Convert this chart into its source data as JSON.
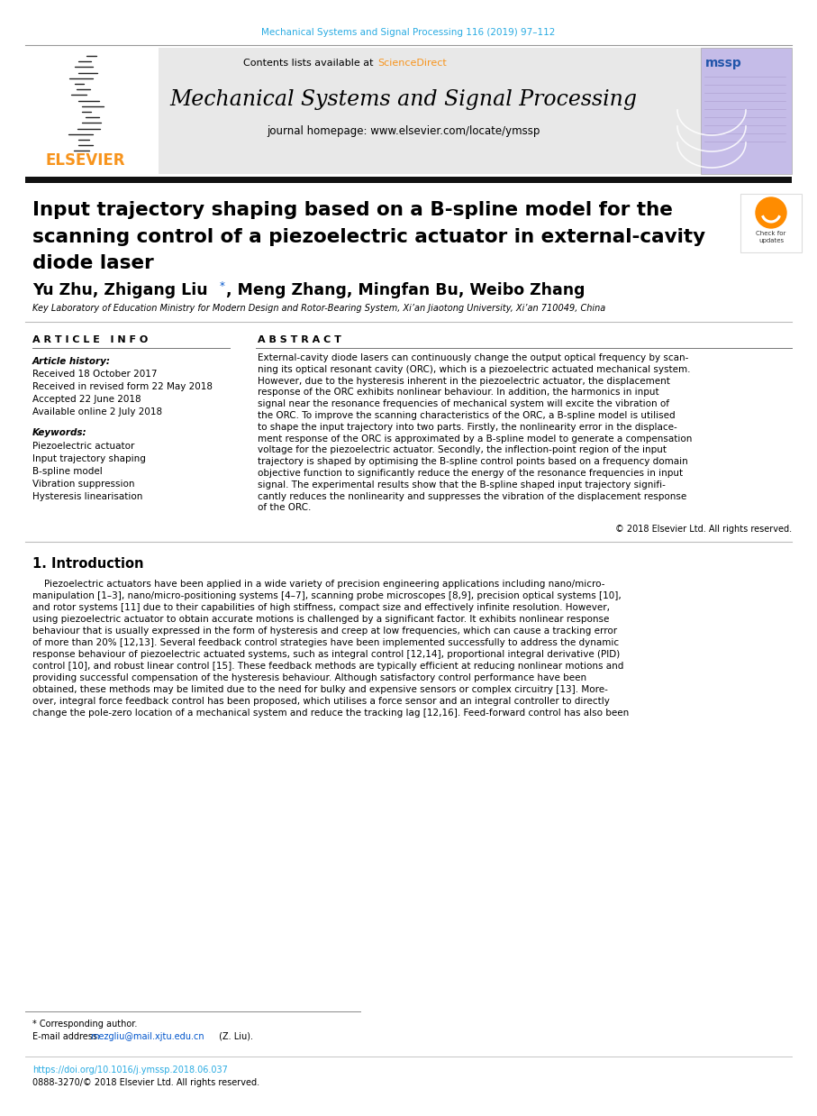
{
  "journal_ref": "Mechanical Systems and Signal Processing 116 (2019) 97–112",
  "journal_ref_color": "#29ABE2",
  "contents_text": "Contents lists available at ",
  "science_direct": "ScienceDirect",
  "science_direct_color": "#F7941D",
  "journal_name": "Mechanical Systems and Signal Processing",
  "journal_homepage": "journal homepage: www.elsevier.com/locate/ymssp",
  "elsevier_color": "#F7941D",
  "elsevier_text": "ELSEVIER",
  "header_bg": "#E8E8E8",
  "paper_title_line1": "Input trajectory shaping based on a B-spline model for the",
  "paper_title_line2": "scanning control of a piezoelectric actuator in external-cavity",
  "paper_title_line3": "diode laser",
  "authors": "Yu Zhu, Zhigang Liu",
  "authors_star": "*",
  "authors_rest": ", Meng Zhang, Mingfan Bu, Weibo Zhang",
  "affiliation": "Key Laboratory of Education Ministry for Modern Design and Rotor-Bearing System, Xi’an Jiaotong University, Xi’an 710049, China",
  "article_info_title": "A R T I C L E   I N F O",
  "abstract_title": "A B S T R A C T",
  "article_history_label": "Article history:",
  "received1": "Received 18 October 2017",
  "received2": "Received in revised form 22 May 2018",
  "accepted": "Accepted 22 June 2018",
  "available": "Available online 2 July 2018",
  "keywords_label": "Keywords:",
  "keyword1": "Piezoelectric actuator",
  "keyword2": "Input trajectory shaping",
  "keyword3": "B-spline model",
  "keyword4": "Vibration suppression",
  "keyword5": "Hysteresis linearisation",
  "abstract_lines": [
    "External-cavity diode lasers can continuously change the output optical frequency by scan-",
    "ning its optical resonant cavity (ORC), which is a piezoelectric actuated mechanical system.",
    "However, due to the hysteresis inherent in the piezoelectric actuator, the displacement",
    "response of the ORC exhibits nonlinear behaviour. In addition, the harmonics in input",
    "signal near the resonance frequencies of mechanical system will excite the vibration of",
    "the ORC. To improve the scanning characteristics of the ORC, a B-spline model is utilised",
    "to shape the input trajectory into two parts. Firstly, the nonlinearity error in the displace-",
    "ment response of the ORC is approximated by a B-spline model to generate a compensation",
    "voltage for the piezoelectric actuator. Secondly, the inflection-point region of the input",
    "trajectory is shaped by optimising the B-spline control points based on a frequency domain",
    "objective function to significantly reduce the energy of the resonance frequencies in input",
    "signal. The experimental results show that the B-spline shaped input trajectory signifi-",
    "cantly reduces the nonlinearity and suppresses the vibration of the displacement response",
    "of the ORC."
  ],
  "copyright_text": "© 2018 Elsevier Ltd. All rights reserved.",
  "section_title": "1. Introduction",
  "intro_lines": [
    "    Piezoelectric actuators have been applied in a wide variety of precision engineering applications including nano/micro-",
    "manipulation [1–3], nano/micro-positioning systems [4–7], scanning probe microscopes [8,9], precision optical systems [10],",
    "and rotor systems [11] due to their capabilities of high stiffness, compact size and effectively infinite resolution. However,",
    "using piezoelectric actuator to obtain accurate motions is challenged by a significant factor. It exhibits nonlinear response",
    "behaviour that is usually expressed in the form of hysteresis and creep at low frequencies, which can cause a tracking error",
    "of more than 20% [12,13]. Several feedback control strategies have been implemented successfully to address the dynamic",
    "response behaviour of piezoelectric actuated systems, such as integral control [12,14], proportional integral derivative (PID)",
    "control [10], and robust linear control [15]. These feedback methods are typically efficient at reducing nonlinear motions and",
    "providing successful compensation of the hysteresis behaviour. Although satisfactory control performance have been",
    "obtained, these methods may be limited due to the need for bulky and expensive sensors or complex circuitry [13]. More-",
    "over, integral force feedback control has been proposed, which utilises a force sensor and an integral controller to directly",
    "change the pole-zero location of a mechanical system and reduce the tracking lag [12,16]. Feed-forward control has also been"
  ],
  "footnote_star": "* Corresponding author.",
  "footnote_email_label": "E-mail address: ",
  "footnote_email": "mezgliu@mail.xjtu.edu.cn",
  "footnote_email_rest": " (Z. Liu).",
  "doi_text": "https://doi.org/10.1016/j.ymssp.2018.06.037",
  "doi_color": "#29ABE2",
  "copyright_footer": "0888-3270/© 2018 Elsevier Ltd. All rights reserved.",
  "bg_color": "#FFFFFF",
  "text_color": "#000000"
}
